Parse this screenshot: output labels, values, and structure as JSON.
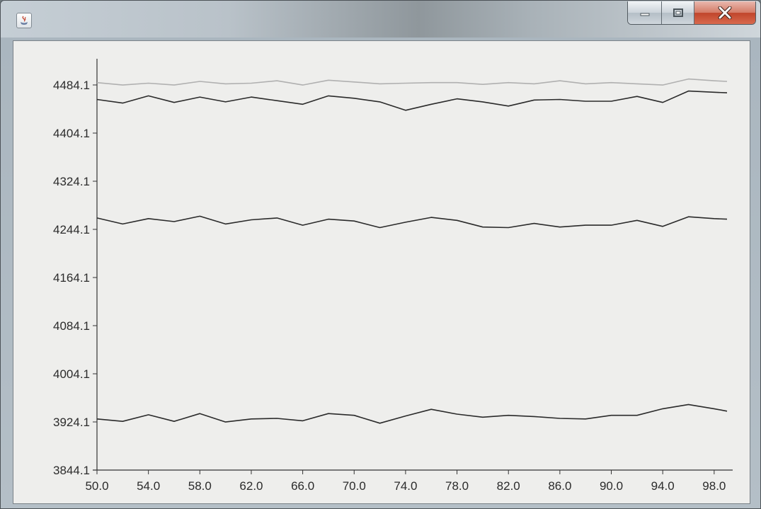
{
  "window": {
    "title": "",
    "controls": {
      "minimize": "minimize",
      "maximize": "maximize",
      "close": "close"
    }
  },
  "chart_data": {
    "type": "line",
    "title": "",
    "xlabel": "",
    "ylabel": "",
    "xlim": [
      50,
      99
    ],
    "ylim": [
      3844.1,
      4504.1
    ],
    "grid": false,
    "legend": "none",
    "x_ticks": [
      "50.0",
      "54.0",
      "58.0",
      "62.0",
      "66.0",
      "70.0",
      "74.0",
      "78.0",
      "82.0",
      "86.0",
      "90.0",
      "94.0",
      "98.0"
    ],
    "y_ticks": [
      "3844.1",
      "3924.1",
      "4004.1",
      "4084.1",
      "4164.1",
      "4244.1",
      "4324.1",
      "4404.1",
      "4484.1"
    ],
    "series": [
      {
        "color": "#b0b0b0",
        "x": [
          50,
          52,
          54,
          56,
          58,
          60,
          62,
          64,
          66,
          68,
          70,
          72,
          74,
          76,
          78,
          80,
          82,
          84,
          86,
          88,
          90,
          92,
          94,
          96,
          98,
          99
        ],
        "y": [
          4488,
          4484,
          4487,
          4484,
          4490,
          4486,
          4487,
          4491,
          4484,
          4492,
          4489,
          4486,
          4487,
          4488,
          4488,
          4485,
          4488,
          4486,
          4491,
          4486,
          4488,
          4486,
          4484,
          4494,
          4491,
          4490
        ]
      },
      {
        "color": "#2a2a2a",
        "x": [
          50,
          52,
          54,
          56,
          58,
          60,
          62,
          64,
          66,
          68,
          70,
          72,
          74,
          76,
          78,
          80,
          82,
          84,
          86,
          88,
          90,
          92,
          94,
          96,
          98,
          99
        ],
        "y": [
          4460,
          4454,
          4466,
          4455,
          4464,
          4456,
          4464,
          4458,
          4452,
          4466,
          4462,
          4456,
          4442,
          4452,
          4461,
          4456,
          4449,
          4459,
          4460,
          4457,
          4457,
          4465,
          4455,
          4474,
          4472,
          4471
        ]
      },
      {
        "color": "#2a2a2a",
        "x": [
          50,
          52,
          54,
          56,
          58,
          60,
          62,
          64,
          66,
          68,
          70,
          72,
          74,
          76,
          78,
          80,
          82,
          84,
          86,
          88,
          90,
          92,
          94,
          96,
          98,
          99
        ],
        "y": [
          4263,
          4253,
          4262,
          4257,
          4266,
          4253,
          4260,
          4263,
          4251,
          4261,
          4258,
          4247,
          4256,
          4264,
          4259,
          4248,
          4247,
          4254,
          4248,
          4251,
          4251,
          4259,
          4249,
          4265,
          4262,
          4261
        ]
      },
      {
        "color": "#2a2a2a",
        "x": [
          50,
          52,
          54,
          56,
          58,
          60,
          62,
          64,
          66,
          68,
          70,
          72,
          74,
          76,
          78,
          80,
          82,
          84,
          86,
          88,
          90,
          92,
          94,
          96,
          98,
          99
        ],
        "y": [
          3929,
          3925,
          3936,
          3925,
          3938,
          3924,
          3929,
          3930,
          3926,
          3938,
          3935,
          3922,
          3934,
          3945,
          3937,
          3932,
          3935,
          3933,
          3930,
          3929,
          3935,
          3935,
          3946,
          3953,
          3946,
          3942
        ]
      }
    ]
  }
}
